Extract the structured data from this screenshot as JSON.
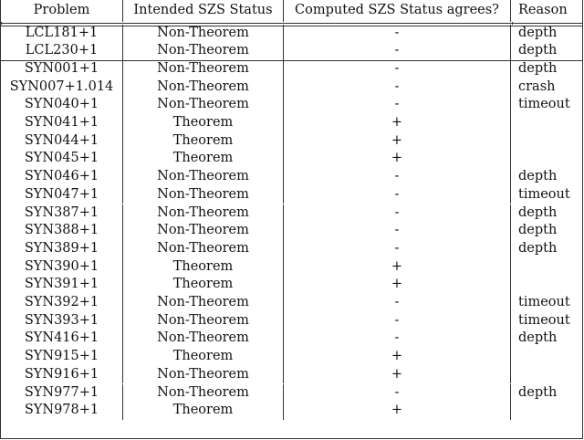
{
  "table": {
    "headers": [
      "Problem",
      "Intended SZS Status",
      "Computed SZS Status agrees?",
      "Reason"
    ],
    "groups": [
      [
        [
          "LCL181+1",
          "Non-Theorem",
          "-",
          "depth"
        ],
        [
          "LCL230+1",
          "Non-Theorem",
          "-",
          "depth"
        ]
      ],
      [
        [
          "SYN001+1",
          "Non-Theorem",
          "-",
          "depth"
        ],
        [
          "SYN007+1.014",
          "Non-Theorem",
          "-",
          "crash"
        ],
        [
          "SYN040+1",
          "Non-Theorem",
          "-",
          "timeout"
        ],
        [
          "SYN041+1",
          "Theorem",
          "+",
          ""
        ],
        [
          "SYN044+1",
          "Theorem",
          "+",
          ""
        ],
        [
          "SYN045+1",
          "Theorem",
          "+",
          ""
        ],
        [
          "SYN046+1",
          "Non-Theorem",
          "-",
          "depth"
        ],
        [
          "SYN047+1",
          "Non-Theorem",
          "-",
          "timeout"
        ],
        [
          "SYN387+1",
          "Non-Theorem",
          "-",
          "depth"
        ],
        [
          "SYN388+1",
          "Non-Theorem",
          "-",
          "depth"
        ],
        [
          "SYN389+1",
          "Non-Theorem",
          "-",
          "depth"
        ],
        [
          "SYN390+1",
          "Theorem",
          "+",
          ""
        ],
        [
          "SYN391+1",
          "Theorem",
          "+",
          ""
        ],
        [
          "SYN392+1",
          "Non-Theorem",
          "-",
          "timeout"
        ],
        [
          "SYN393+1",
          "Non-Theorem",
          "-",
          "timeout"
        ],
        [
          "SYN416+1",
          "Non-Theorem",
          "-",
          "depth"
        ],
        [
          "SYN915+1",
          "Theorem",
          "+",
          ""
        ],
        [
          "SYN916+1",
          "Non-Theorem",
          "+",
          ""
        ],
        [
          "SYN977+1",
          "Non-Theorem",
          "-",
          "depth"
        ],
        [
          "SYN978+1",
          "Theorem",
          "+",
          ""
        ]
      ]
    ]
  }
}
